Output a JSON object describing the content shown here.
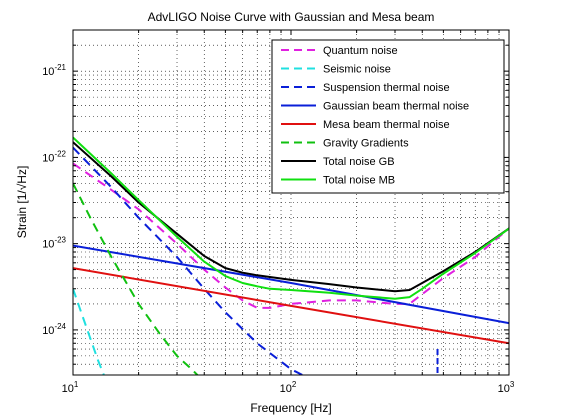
{
  "chart_data": {
    "type": "line",
    "title": "AdvLIGO Noise Curve with Gaussian and Mesa beam",
    "xlabel": "Frequency [Hz]",
    "ylabel": "Strain [1/√Hz]",
    "xscale": "log",
    "yscale": "log",
    "xlim": [
      10,
      1000
    ],
    "ylim": [
      3e-25,
      3e-21
    ],
    "grid": true,
    "legend_position": "top-right",
    "x_ticks": [
      {
        "value": 10,
        "base": "10",
        "exp": "1"
      },
      {
        "value": 100,
        "base": "10",
        "exp": "2"
      },
      {
        "value": 1000,
        "base": "10",
        "exp": "3"
      }
    ],
    "y_ticks": [
      {
        "value": 1e-24,
        "base": "10",
        "exp": "-24"
      },
      {
        "value": 1e-23,
        "base": "10",
        "exp": "-23"
      },
      {
        "value": 1e-22,
        "base": "10",
        "exp": "-22"
      },
      {
        "value": 1e-21,
        "base": "10",
        "exp": "-21"
      }
    ],
    "series": [
      {
        "name": "Quantum noise",
        "color": "#e020e0",
        "dash": "dashed",
        "x": [
          10,
          15,
          20,
          30,
          40,
          50,
          60,
          70,
          80,
          100,
          150,
          200,
          300,
          350,
          400,
          500,
          700,
          1000
        ],
        "y": [
          8.5e-23,
          4.2e-23,
          2.5e-23,
          1e-23,
          5e-24,
          3.1e-24,
          2.2e-24,
          1.8e-24,
          1.8e-24,
          2e-24,
          2.2e-24,
          2.2e-24,
          2e-24,
          2e-24,
          2.6e-24,
          4e-24,
          7e-24,
          1.5e-23
        ]
      },
      {
        "name": "Seismic noise",
        "color": "#20e0e0",
        "dash": "dashed",
        "x": [
          10,
          11,
          12,
          13,
          14
        ],
        "y": [
          3e-24,
          1.5e-24,
          8e-25,
          4.5e-25,
          2.8e-25
        ]
      },
      {
        "name": "Suspension thermal noise",
        "color": "#0a1fd8",
        "dash": "dashed",
        "x": [
          10,
          15,
          20,
          30,
          40,
          50,
          70,
          100,
          130
        ],
        "y": [
          1.3e-22,
          4.5e-23,
          2e-23,
          7e-24,
          3e-24,
          1.6e-24,
          7e-25,
          3.5e-25,
          2.5e-25
        ]
      },
      {
        "name": "Gaussian beam thermal noise",
        "color": "#0a1fd8",
        "dash": "solid",
        "x": [
          10,
          100,
          1000
        ],
        "y": [
          9.5e-24,
          3.5e-24,
          1.2e-24
        ]
      },
      {
        "name": "Mesa beam thermal noise",
        "color": "#e01010",
        "dash": "solid",
        "x": [
          10,
          100,
          1000
        ],
        "y": [
          5.2e-24,
          1.9e-24,
          7e-25
        ]
      },
      {
        "name": "Gravity Gradients",
        "color": "#10c010",
        "dash": "dashed",
        "x": [
          10,
          12,
          15,
          20,
          25,
          30,
          35,
          40,
          45
        ],
        "y": [
          5e-23,
          2e-23,
          7e-24,
          2e-24,
          9e-25,
          5e-25,
          3.5e-25,
          2.5e-25,
          2e-25
        ]
      },
      {
        "name": "Total noise GB",
        "color": "#000000",
        "dash": "solid",
        "x": [
          10,
          15,
          20,
          30,
          40,
          50,
          60,
          70,
          80,
          100,
          150,
          200,
          300,
          350,
          400,
          500,
          700,
          1000
        ],
        "y": [
          1.5e-22,
          6e-23,
          3e-23,
          1.3e-23,
          7.2e-24,
          5.2e-24,
          4.6e-24,
          4.3e-24,
          4.1e-24,
          3.8e-24,
          3.4e-24,
          3.1e-24,
          2.8e-24,
          2.9e-24,
          3.5e-24,
          4.8e-24,
          8e-24,
          1.5e-23
        ]
      },
      {
        "name": "Total noise MB",
        "color": "#10e010",
        "dash": "solid",
        "x": [
          10,
          15,
          20,
          30,
          40,
          50,
          60,
          70,
          80,
          100,
          150,
          200,
          300,
          350,
          400,
          500,
          700,
          1000
        ],
        "y": [
          1.7e-22,
          6.5e-23,
          3.2e-23,
          1.2e-23,
          6.2e-24,
          4.2e-24,
          3.5e-24,
          3.2e-24,
          3e-24,
          2.9e-24,
          2.7e-24,
          2.5e-24,
          2.3e-24,
          2.4e-24,
          3e-24,
          4.5e-24,
          7.8e-24,
          1.5e-23
        ]
      }
    ],
    "annotations": [
      {
        "series": "Suspension thermal noise",
        "description": "narrow violin-mode spike",
        "x": 470,
        "y_range": [
          3e-25,
          6e-25
        ]
      }
    ]
  }
}
